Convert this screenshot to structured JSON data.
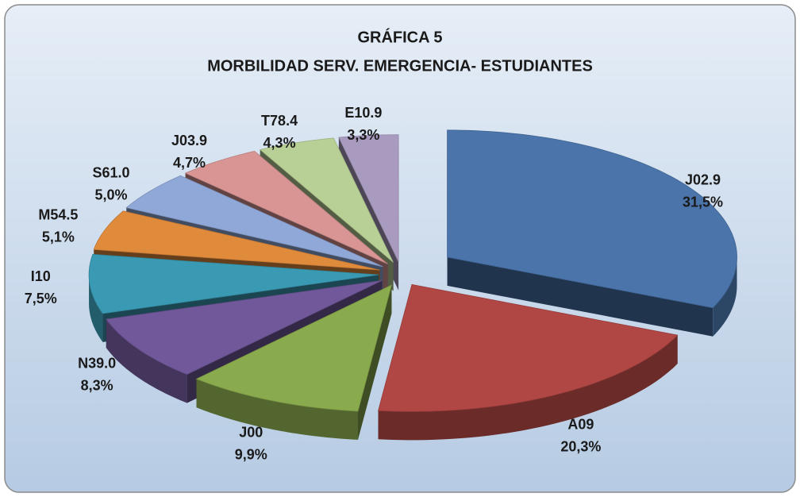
{
  "chart_data": {
    "type": "pie",
    "title": "GRÁFICA 5",
    "subtitle": "MORBILIDAD SERV. EMERGENCIA- ESTUDIANTES",
    "categories": [
      "J02.9",
      "A09",
      "J00",
      "N39.0",
      "I10",
      "M54.5",
      "S61.0",
      "J03.9",
      "T78.4",
      "E10.9"
    ],
    "values": [
      31.5,
      20.3,
      9.9,
      8.3,
      7.5,
      5.1,
      5.0,
      4.7,
      4.3,
      3.3
    ],
    "value_labels": [
      "31,5%",
      "20,3%",
      "9,9%",
      "8,3%",
      "7,5%",
      "5,1%",
      "5,0%",
      "4,7%",
      "4,3%",
      "3,3%"
    ],
    "colors": [
      "#4a74aa",
      "#b04744",
      "#8aaa4e",
      "#71589a",
      "#3a9ab3",
      "#e08a3c",
      "#90a8d8",
      "#d89594",
      "#b8cf95",
      "#a99bc0"
    ]
  }
}
